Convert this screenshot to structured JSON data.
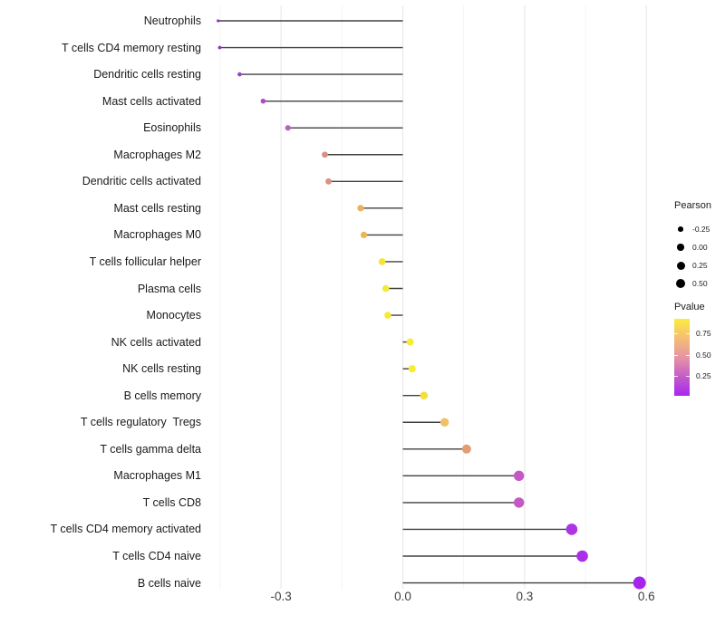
{
  "chart_data": {
    "type": "scatter",
    "variant": "horizontal-lollipop",
    "title": "",
    "xlabel": "",
    "ylabel": "",
    "xlim": [
      -0.52,
      0.66
    ],
    "grid": "vertical-only",
    "legend_position": "right",
    "stem_color": "#404040",
    "major_grid_color": "#e8e8e8",
    "minor_grid_color": "#f3f3f3",
    "x_ticks": [
      {
        "value": -0.3,
        "label": "-0.3"
      },
      {
        "value": 0.0,
        "label": "0.0"
      },
      {
        "value": 0.3,
        "label": "0.3"
      },
      {
        "value": 0.6,
        "label": "0.6"
      }
    ],
    "x_minor_ticks": [
      -0.45,
      -0.15,
      0.15,
      0.45
    ],
    "rows": [
      {
        "label": "Neutrophils",
        "pearson": -0.455,
        "dot_color": "#9232C3",
        "dot_radius_px": 1.6
      },
      {
        "label": "T cells CD4 memory resting",
        "pearson": -0.451,
        "dot_color": "#9232C3",
        "dot_radius_px": 1.9
      },
      {
        "label": "Dendritic cells resting",
        "pearson": -0.402,
        "dot_color": "#A23FC6",
        "dot_radius_px": 2.3
      },
      {
        "label": "Mast cells activated",
        "pearson": -0.344,
        "dot_color": "#AF4DC5",
        "dot_radius_px": 2.8
      },
      {
        "label": "Eosinophils",
        "pearson": -0.283,
        "dot_color": "#BC60BD",
        "dot_radius_px": 3.1
      },
      {
        "label": "Macrophages M2",
        "pearson": -0.192,
        "dot_color": "#DC8E86",
        "dot_radius_px": 3.4
      },
      {
        "label": "Dendritic cells activated",
        "pearson": -0.183,
        "dot_color": "#DD9083",
        "dot_radius_px": 3.4
      },
      {
        "label": "Mast cells resting",
        "pearson": -0.104,
        "dot_color": "#EAB25E",
        "dot_radius_px": 3.6
      },
      {
        "label": "Macrophages M0",
        "pearson": -0.096,
        "dot_color": "#ECB656",
        "dot_radius_px": 3.6
      },
      {
        "label": "T cells follicular helper",
        "pearson": -0.051,
        "dot_color": "#F5E435",
        "dot_radius_px": 3.8
      },
      {
        "label": "Plasma cells",
        "pearson": -0.042,
        "dot_color": "#F6E833",
        "dot_radius_px": 3.8
      },
      {
        "label": "Monocytes",
        "pearson": -0.037,
        "dot_color": "#F7EA31",
        "dot_radius_px": 3.8
      },
      {
        "label": "NK cells activated",
        "pearson": 0.018,
        "dot_color": "#F8EC30",
        "dot_radius_px": 4.0
      },
      {
        "label": "NK cells resting",
        "pearson": 0.023,
        "dot_color": "#F8EC30",
        "dot_radius_px": 4.0
      },
      {
        "label": "B cells memory",
        "pearson": 0.052,
        "dot_color": "#F5DF3D",
        "dot_radius_px": 4.3
      },
      {
        "label": "T cells regulatory  Tregs",
        "pearson": 0.103,
        "dot_color": "#EFC167",
        "dot_radius_px": 4.7
      },
      {
        "label": "T cells gamma delta",
        "pearson": 0.157,
        "dot_color": "#E29D74",
        "dot_radius_px": 5.0
      },
      {
        "label": "Macrophages M1",
        "pearson": 0.286,
        "dot_color": "#C558C4",
        "dot_radius_px": 5.7
      },
      {
        "label": "T cells CD8",
        "pearson": 0.286,
        "dot_color": "#C558C4",
        "dot_radius_px": 5.7
      },
      {
        "label": "T cells CD4 memory activated",
        "pearson": 0.416,
        "dot_color": "#AC35E6",
        "dot_radius_px": 6.3
      },
      {
        "label": "T cells CD4 naive",
        "pearson": 0.442,
        "dot_color": "#A92FE9",
        "dot_radius_px": 6.3
      },
      {
        "label": "B cells naive",
        "pearson": 0.583,
        "dot_color": "#A524EE",
        "dot_radius_px": 7.0
      }
    ]
  },
  "legend": {
    "pearson": {
      "title": "Pearson",
      "dot_color": "#000000",
      "items": [
        {
          "label": "-0.25",
          "radius": 2.8
        },
        {
          "label": "0.00",
          "radius": 3.7
        },
        {
          "label": "0.25",
          "radius": 4.5
        },
        {
          "label": "0.50",
          "radius": 5.2
        }
      ]
    },
    "pvalue": {
      "title": "Pvalue",
      "ticks": [
        "0.75",
        "0.50",
        "0.25"
      ],
      "gradient_bottom_to_top": [
        "#A826F2",
        "#C45CC9",
        "#E694A3",
        "#F4BE74",
        "#FBEC3F"
      ]
    }
  }
}
